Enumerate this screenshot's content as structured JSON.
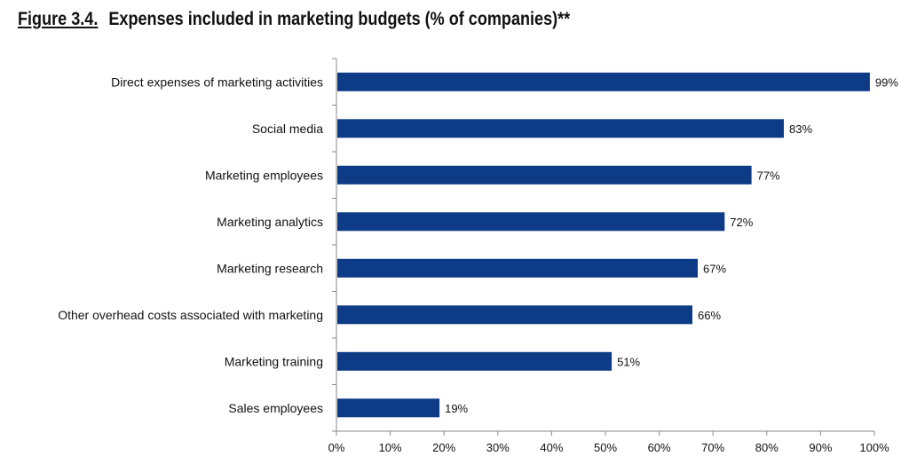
{
  "figure": {
    "number": "Figure 3.4",
    "period": ".",
    "title": "Expenses included in marketing budgets (% of companies)**"
  },
  "colors": {
    "bar": "#0d3b86",
    "axis": "#8a8a8a"
  },
  "chart_data": {
    "type": "bar",
    "orientation": "horizontal",
    "categories": [
      "Direct expenses of marketing activities",
      "Social media",
      "Marketing employees",
      "Marketing analytics",
      "Marketing research",
      "Other overhead costs associated with marketing",
      "Marketing training",
      "Sales employees"
    ],
    "values": [
      99,
      83,
      77,
      72,
      67,
      66,
      51,
      19
    ],
    "value_labels": [
      "99%",
      "83%",
      "77%",
      "72%",
      "67%",
      "66%",
      "51%",
      "19%"
    ],
    "xlim": [
      0,
      100
    ],
    "xticks": [
      0,
      10,
      20,
      30,
      40,
      50,
      60,
      70,
      80,
      90,
      100
    ],
    "xtick_labels": [
      "0%",
      "10%",
      "20%",
      "30%",
      "40%",
      "50%",
      "60%",
      "70%",
      "80%",
      "90%",
      "100%"
    ],
    "grid": false,
    "legend": "none"
  }
}
